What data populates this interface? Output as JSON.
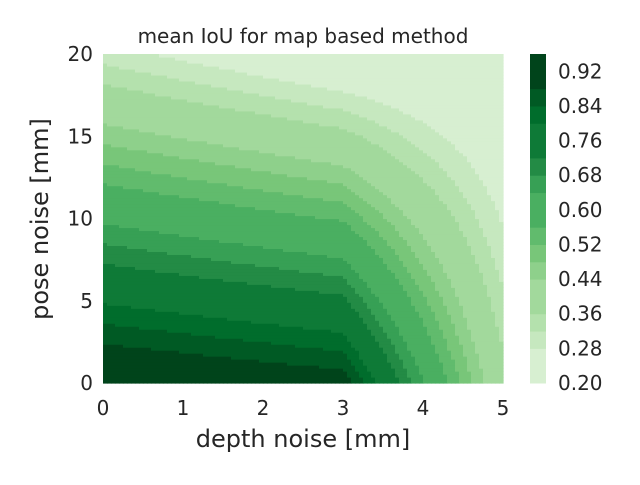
{
  "chart_data": {
    "type": "heatmap",
    "subtype": "filled-contour",
    "title": "mean IoU for map based method",
    "xlabel": "depth noise [mm]",
    "ylabel": "pose noise [mm]",
    "xlim": [
      0,
      5
    ],
    "ylim": [
      0,
      20
    ],
    "x_ticks": [
      "0",
      "1",
      "2",
      "3",
      "4",
      "5"
    ],
    "y_ticks": [
      "0",
      "5",
      "10",
      "15",
      "20"
    ],
    "x": [
      0,
      3,
      5
    ],
    "y": [
      0,
      20
    ],
    "z": [
      [
        0.96,
        0.91,
        0.38
      ],
      [
        0.3,
        0.2,
        0.17
      ]
    ],
    "levels": [
      0.2,
      0.24,
      0.28,
      0.32,
      0.36,
      0.4,
      0.44,
      0.48,
      0.52,
      0.56,
      0.6,
      0.64,
      0.68,
      0.72,
      0.76,
      0.8,
      0.84,
      0.88,
      0.92,
      0.96
    ],
    "colormap": [
      "#d7efd1",
      "#c6e8bf",
      "#b4e1ad",
      "#a2d99c",
      "#8ed08b",
      "#78c679",
      "#61bb6d",
      "#4aaf61",
      "#37a055",
      "#238b45",
      "#0e7a37",
      "#006d2c",
      "#005a24",
      "#00441b"
    ],
    "colorbar": {
      "tick_labels": [
        "0.20",
        "0.28",
        "0.36",
        "0.44",
        "0.52",
        "0.60",
        "0.68",
        "0.76",
        "0.84",
        "0.92"
      ]
    },
    "grid": false,
    "background": "#eaeaf2"
  }
}
